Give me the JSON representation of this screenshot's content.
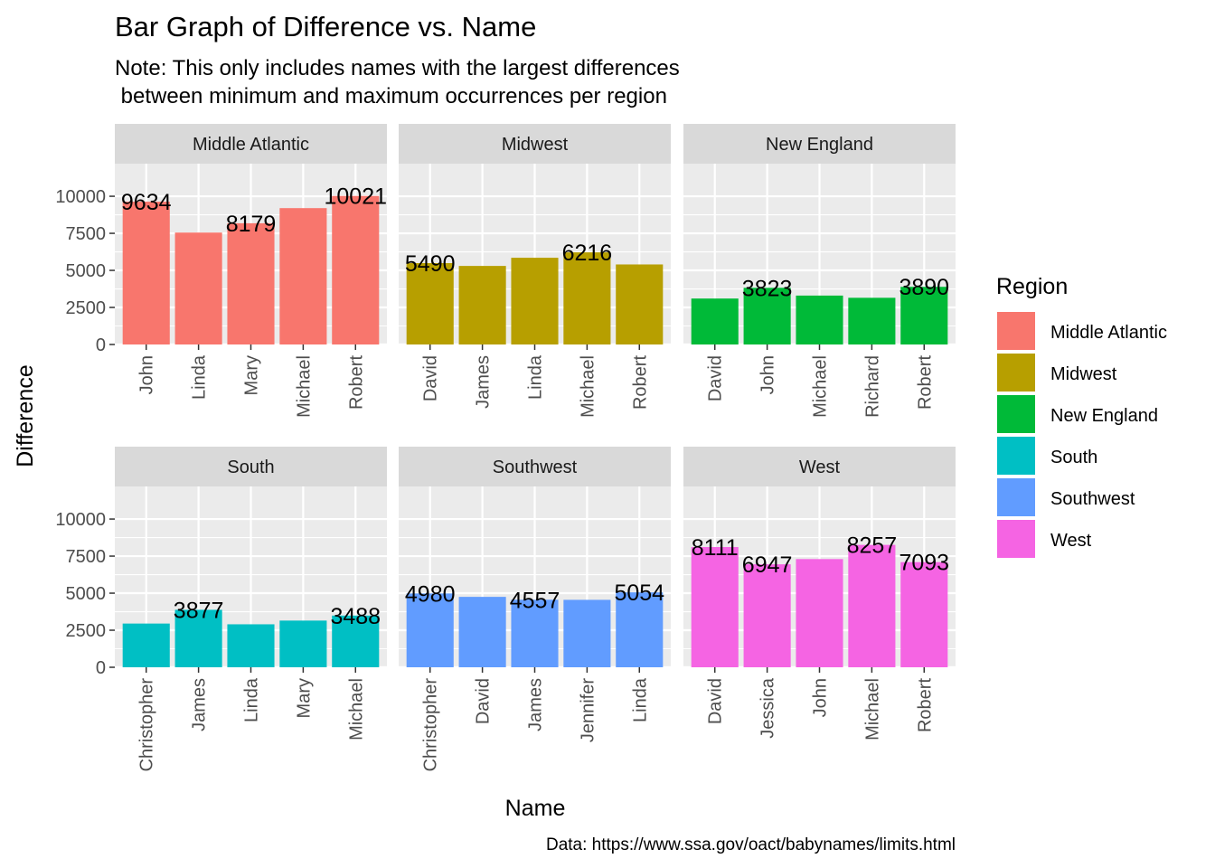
{
  "chart_data": {
    "type": "bar",
    "title": "Bar Graph of Difference vs. Name",
    "subtitle_lines": [
      "Note: This only includes names with the largest differences",
      " between minimum and maximum occurrences per region"
    ],
    "xlabel": "Name",
    "ylabel": "Difference",
    "caption": "Data: https://www.ssa.gov/oact/babynames/limits.html",
    "ylim": [
      0,
      12200
    ],
    "yticks": [
      0,
      2500,
      5000,
      7500,
      10000
    ],
    "ytick_labels": [
      "0",
      "2500",
      "5000",
      "7500",
      "10000"
    ],
    "grid": true,
    "legend": {
      "title": "Region",
      "placement": "right"
    },
    "panels": [
      {
        "name": "Middle Atlantic",
        "color": "#F8766D",
        "categories": [
          "John",
          "Linda",
          "Mary",
          "Michael",
          "Robert"
        ],
        "values": [
          9634,
          7550,
          8179,
          9200,
          10021
        ],
        "labels": [
          "9634",
          "",
          "8179",
          "",
          "10021"
        ]
      },
      {
        "name": "Midwest",
        "color": "#B79F00",
        "categories": [
          "David",
          "James",
          "Linda",
          "Michael",
          "Robert"
        ],
        "values": [
          5490,
          5300,
          5850,
          6216,
          5400
        ],
        "labels": [
          "5490",
          "",
          "",
          "6216",
          ""
        ]
      },
      {
        "name": "New England",
        "color": "#00BA38",
        "categories": [
          "David",
          "John",
          "Michael",
          "Richard",
          "Robert"
        ],
        "values": [
          3100,
          3823,
          3300,
          3150,
          3890
        ],
        "labels": [
          "",
          "3823",
          "",
          "",
          "3890"
        ]
      },
      {
        "name": "South",
        "color": "#00BFC4",
        "categories": [
          "Christopher",
          "James",
          "Linda",
          "Mary",
          "Michael"
        ],
        "values": [
          2950,
          3877,
          2900,
          3150,
          3488
        ],
        "labels": [
          "",
          "3877",
          "",
          "",
          "3488"
        ]
      },
      {
        "name": "Southwest",
        "color": "#619CFF",
        "categories": [
          "Christopher",
          "David",
          "James",
          "Jennifer",
          "Linda"
        ],
        "values": [
          4980,
          4750,
          4557,
          4550,
          5054
        ],
        "labels": [
          "4980",
          "",
          "4557",
          "",
          "5054"
        ]
      },
      {
        "name": "West",
        "color": "#F564E3",
        "categories": [
          "David",
          "Jessica",
          "John",
          "Michael",
          "Robert"
        ],
        "values": [
          8111,
          6947,
          7300,
          8257,
          7093
        ],
        "labels": [
          "8111",
          "6947",
          "",
          "8257",
          "7093"
        ]
      }
    ]
  }
}
